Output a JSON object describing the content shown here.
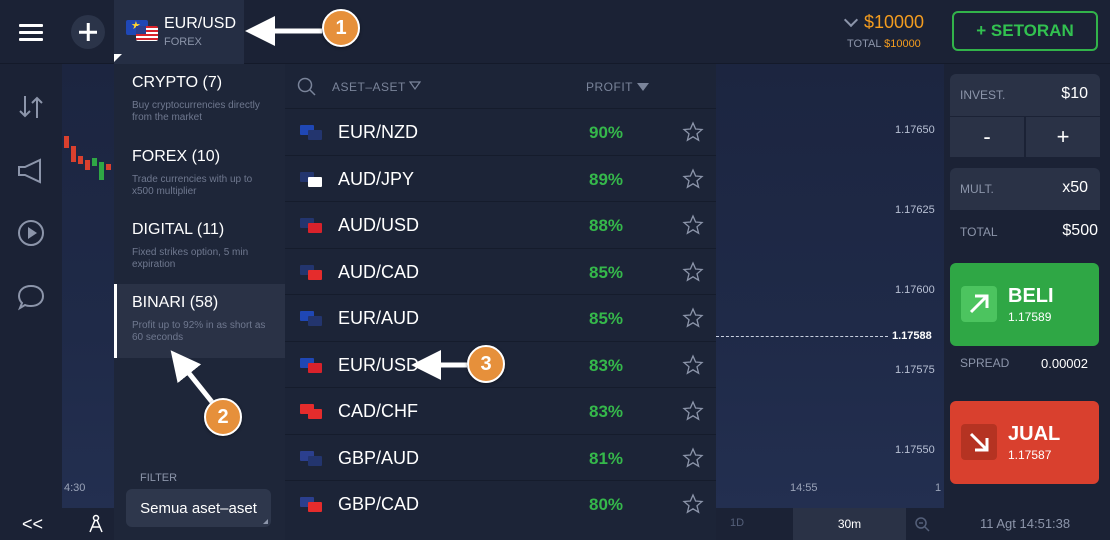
{
  "header": {
    "current_asset": {
      "name": "EUR/USD",
      "type": "FOREX"
    },
    "balance": "$10000",
    "balance_total_label": "TOTAL",
    "balance_total_value": "$10000",
    "deposit_label": "+ SETORAN"
  },
  "categories": [
    {
      "title": "CRYPTO (7)",
      "desc": "Buy cryptocurrencies directly from the market",
      "active": false
    },
    {
      "title": "FOREX (10)",
      "desc": "Trade currencies with up to x500 multiplier",
      "active": false
    },
    {
      "title": "DIGITAL (11)",
      "desc": "Fixed strikes option, 5 min expiration",
      "active": false
    },
    {
      "title": "BINARI (58)",
      "desc": "Profit up to 92% in as short as 60 seconds",
      "active": true
    }
  ],
  "filter": {
    "label": "FILTER",
    "value": "Semua aset–aset"
  },
  "asset_list": {
    "header_assets": "ASET–ASET",
    "header_profit": "PROFIT",
    "rows": [
      {
        "name": "EUR/NZD",
        "profit": "90%",
        "flag1": "#1f47b5",
        "flag2": "#23356e"
      },
      {
        "name": "AUD/JPY",
        "profit": "89%",
        "flag1": "#23356e",
        "flag2": "#ffffff"
      },
      {
        "name": "AUD/USD",
        "profit": "88%",
        "flag1": "#23356e",
        "flag2": "#d8222b"
      },
      {
        "name": "AUD/CAD",
        "profit": "85%",
        "flag1": "#23356e",
        "flag2": "#e52c2c"
      },
      {
        "name": "EUR/AUD",
        "profit": "85%",
        "flag1": "#1f47b5",
        "flag2": "#23356e"
      },
      {
        "name": "EUR/USD",
        "profit": "83%",
        "flag1": "#1f47b5",
        "flag2": "#d8222b"
      },
      {
        "name": "CAD/CHF",
        "profit": "83%",
        "flag1": "#e52c2c",
        "flag2": "#e52c2c"
      },
      {
        "name": "GBP/AUD",
        "profit": "81%",
        "flag1": "#2b3f8e",
        "flag2": "#23356e"
      },
      {
        "name": "GBP/CAD",
        "profit": "80%",
        "flag1": "#2b3f8e",
        "flag2": "#e52c2c"
      }
    ]
  },
  "chart": {
    "price_ticks": [
      "1.17650",
      "1.17625",
      "1.17600",
      "1.17575",
      "1.17550"
    ],
    "current_price": "1.17588",
    "time_left": "4:30",
    "time_right": "14:55",
    "time_edge": "1"
  },
  "trade_panel": {
    "invest_label": "INVEST.",
    "invest_value": "$10",
    "minus": "-",
    "plus": "+",
    "mult_label": "MULT.",
    "mult_value": "x50",
    "total_label": "TOTAL",
    "total_value": "$500",
    "buy_label": "BELI",
    "buy_price": "1.17589",
    "spread_label": "SPREAD",
    "spread_value": "0.00002",
    "sell_label": "JUAL",
    "sell_price": "1.17587"
  },
  "bottom_bar": {
    "collapse": "<<",
    "tf_1d": "1D",
    "tf_30m": "30m",
    "datetime": "11 Agt 14:51:38"
  },
  "annotations": [
    "1",
    "2",
    "3"
  ],
  "colors": {
    "accent_green": "#35b84b",
    "buy": "#2fa745",
    "sell": "#d9402e",
    "balance": "#f39c1f",
    "callout": "#e6903b"
  }
}
